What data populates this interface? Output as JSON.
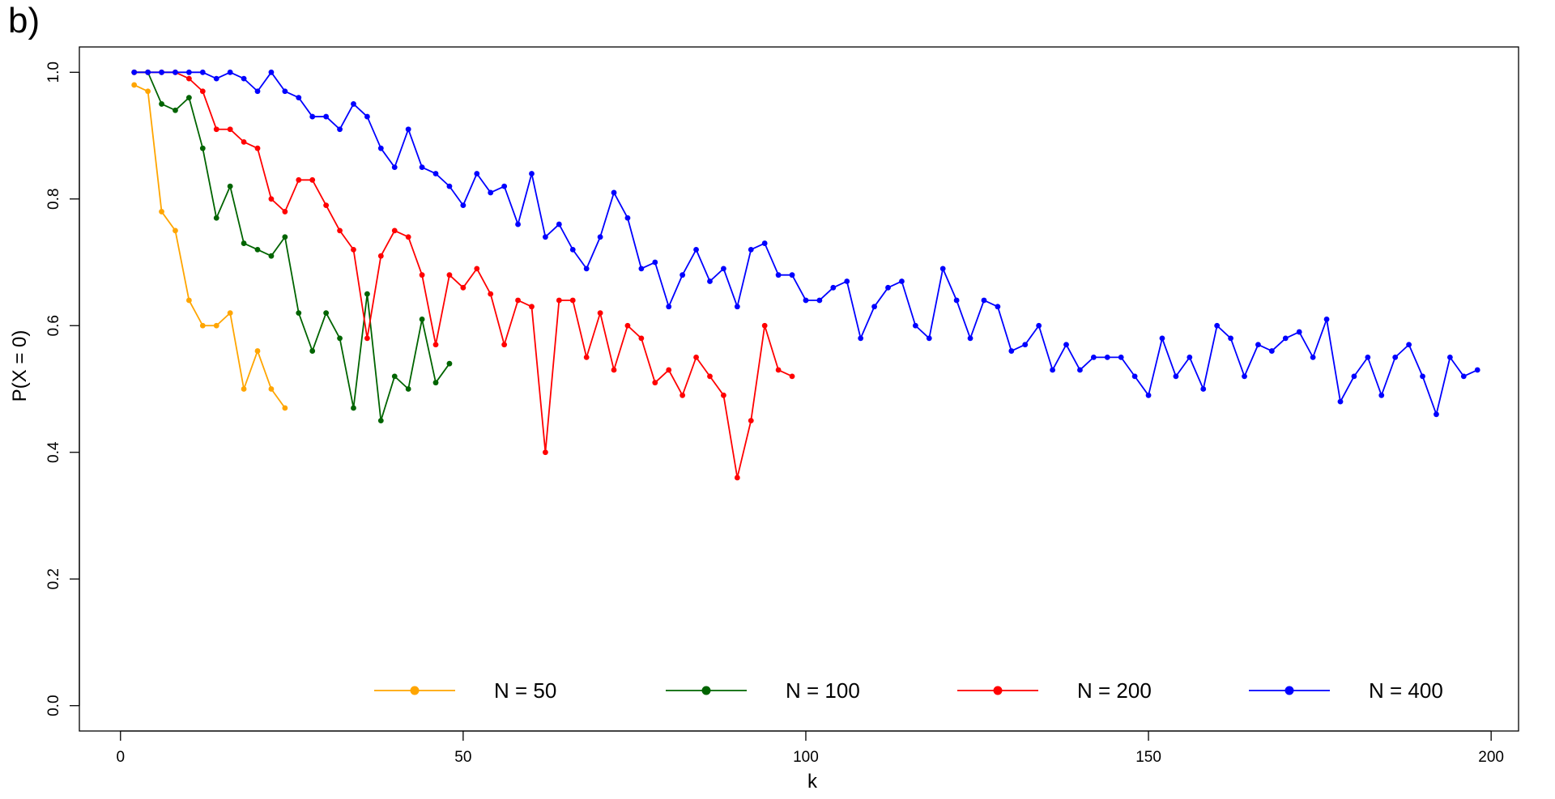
{
  "chart_data": {
    "type": "line",
    "panel_label": "b)",
    "xlabel": "k",
    "ylabel": "P(X = 0)",
    "xlim": [
      -6,
      204
    ],
    "ylim": [
      -0.04,
      1.04
    ],
    "x_ticks": [
      0,
      50,
      100,
      150,
      200
    ],
    "y_ticks": [
      0.0,
      0.2,
      0.4,
      0.6,
      0.8,
      1.0
    ],
    "x_tick_labels": [
      "0",
      "50",
      "100",
      "150",
      "200"
    ],
    "y_tick_labels": [
      "0.0",
      "0.2",
      "0.4",
      "0.6",
      "0.8",
      "1.0"
    ],
    "grid": false,
    "legend_position": "bottom",
    "series": [
      {
        "name": "N = 50",
        "color": "#FFA500",
        "x": [
          2,
          4,
          6,
          8,
          10,
          12,
          14,
          16,
          18,
          20,
          22,
          24
        ],
        "y": [
          0.98,
          0.97,
          0.78,
          0.75,
          0.64,
          0.6,
          0.6,
          0.62,
          0.5,
          0.56,
          0.5,
          0.47
        ]
      },
      {
        "name": "N = 100",
        "color": "#006400",
        "x": [
          2,
          4,
          6,
          8,
          10,
          12,
          14,
          16,
          18,
          20,
          22,
          24,
          26,
          28,
          30,
          32,
          34,
          36,
          38,
          40,
          42,
          44,
          46,
          48
        ],
        "y": [
          1.0,
          1.0,
          0.95,
          0.94,
          0.96,
          0.88,
          0.77,
          0.82,
          0.73,
          0.72,
          0.71,
          0.74,
          0.62,
          0.56,
          0.62,
          0.58,
          0.47,
          0.65,
          0.45,
          0.52,
          0.5,
          0.61,
          0.51,
          0.54
        ]
      },
      {
        "name": "N = 200",
        "color": "#FF0000",
        "x": [
          2,
          4,
          6,
          8,
          10,
          12,
          14,
          16,
          18,
          20,
          22,
          24,
          26,
          28,
          30,
          32,
          34,
          36,
          38,
          40,
          42,
          44,
          46,
          48,
          50,
          52,
          54,
          56,
          58,
          60,
          62,
          64,
          66,
          68,
          70,
          72,
          74,
          76,
          78,
          80,
          82,
          84,
          86,
          88,
          90,
          92,
          94,
          96,
          98
        ],
        "y": [
          1.0,
          1.0,
          1.0,
          1.0,
          0.99,
          0.97,
          0.91,
          0.91,
          0.89,
          0.88,
          0.8,
          0.78,
          0.83,
          0.83,
          0.79,
          0.75,
          0.72,
          0.58,
          0.71,
          0.75,
          0.74,
          0.68,
          0.57,
          0.68,
          0.66,
          0.69,
          0.65,
          0.57,
          0.64,
          0.63,
          0.4,
          0.64,
          0.64,
          0.55,
          0.62,
          0.53,
          0.6,
          0.58,
          0.51,
          0.53,
          0.49,
          0.55,
          0.52,
          0.49,
          0.36,
          0.45,
          0.6,
          0.53,
          0.52
        ]
      },
      {
        "name": "N = 400",
        "color": "#0000FF",
        "x": [
          2,
          4,
          6,
          8,
          10,
          12,
          14,
          16,
          18,
          20,
          22,
          24,
          26,
          28,
          30,
          32,
          34,
          36,
          38,
          40,
          42,
          44,
          46,
          48,
          50,
          52,
          54,
          56,
          58,
          60,
          62,
          64,
          66,
          68,
          70,
          72,
          74,
          76,
          78,
          80,
          82,
          84,
          86,
          88,
          90,
          92,
          94,
          96,
          98,
          100,
          102,
          104,
          106,
          108,
          110,
          112,
          114,
          116,
          118,
          120,
          122,
          124,
          126,
          128,
          130,
          132,
          134,
          136,
          138,
          140,
          142,
          144,
          146,
          148,
          150,
          152,
          154,
          156,
          158,
          160,
          162,
          164,
          166,
          168,
          170,
          172,
          174,
          176,
          178,
          180,
          182,
          184,
          186,
          188,
          190,
          192,
          194,
          196,
          198
        ],
        "y": [
          1.0,
          1.0,
          1.0,
          1.0,
          1.0,
          1.0,
          0.99,
          1.0,
          0.99,
          0.97,
          1.0,
          0.97,
          0.96,
          0.93,
          0.93,
          0.91,
          0.95,
          0.93,
          0.88,
          0.85,
          0.91,
          0.85,
          0.84,
          0.82,
          0.79,
          0.84,
          0.81,
          0.82,
          0.76,
          0.84,
          0.74,
          0.76,
          0.72,
          0.69,
          0.74,
          0.81,
          0.77,
          0.69,
          0.7,
          0.63,
          0.68,
          0.72,
          0.67,
          0.69,
          0.63,
          0.72,
          0.73,
          0.68,
          0.68,
          0.64,
          0.64,
          0.66,
          0.67,
          0.58,
          0.63,
          0.66,
          0.67,
          0.6,
          0.58,
          0.69,
          0.64,
          0.58,
          0.64,
          0.63,
          0.56,
          0.57,
          0.6,
          0.53,
          0.57,
          0.53,
          0.55,
          0.55,
          0.55,
          0.52,
          0.49,
          0.58,
          0.52,
          0.55,
          0.5,
          0.6,
          0.58,
          0.52,
          0.57,
          0.56,
          0.58,
          0.59,
          0.55,
          0.61,
          0.48,
          0.52,
          0.55,
          0.49,
          0.55,
          0.57,
          0.52,
          0.46,
          0.55,
          0.52,
          0.53
        ]
      }
    ]
  }
}
